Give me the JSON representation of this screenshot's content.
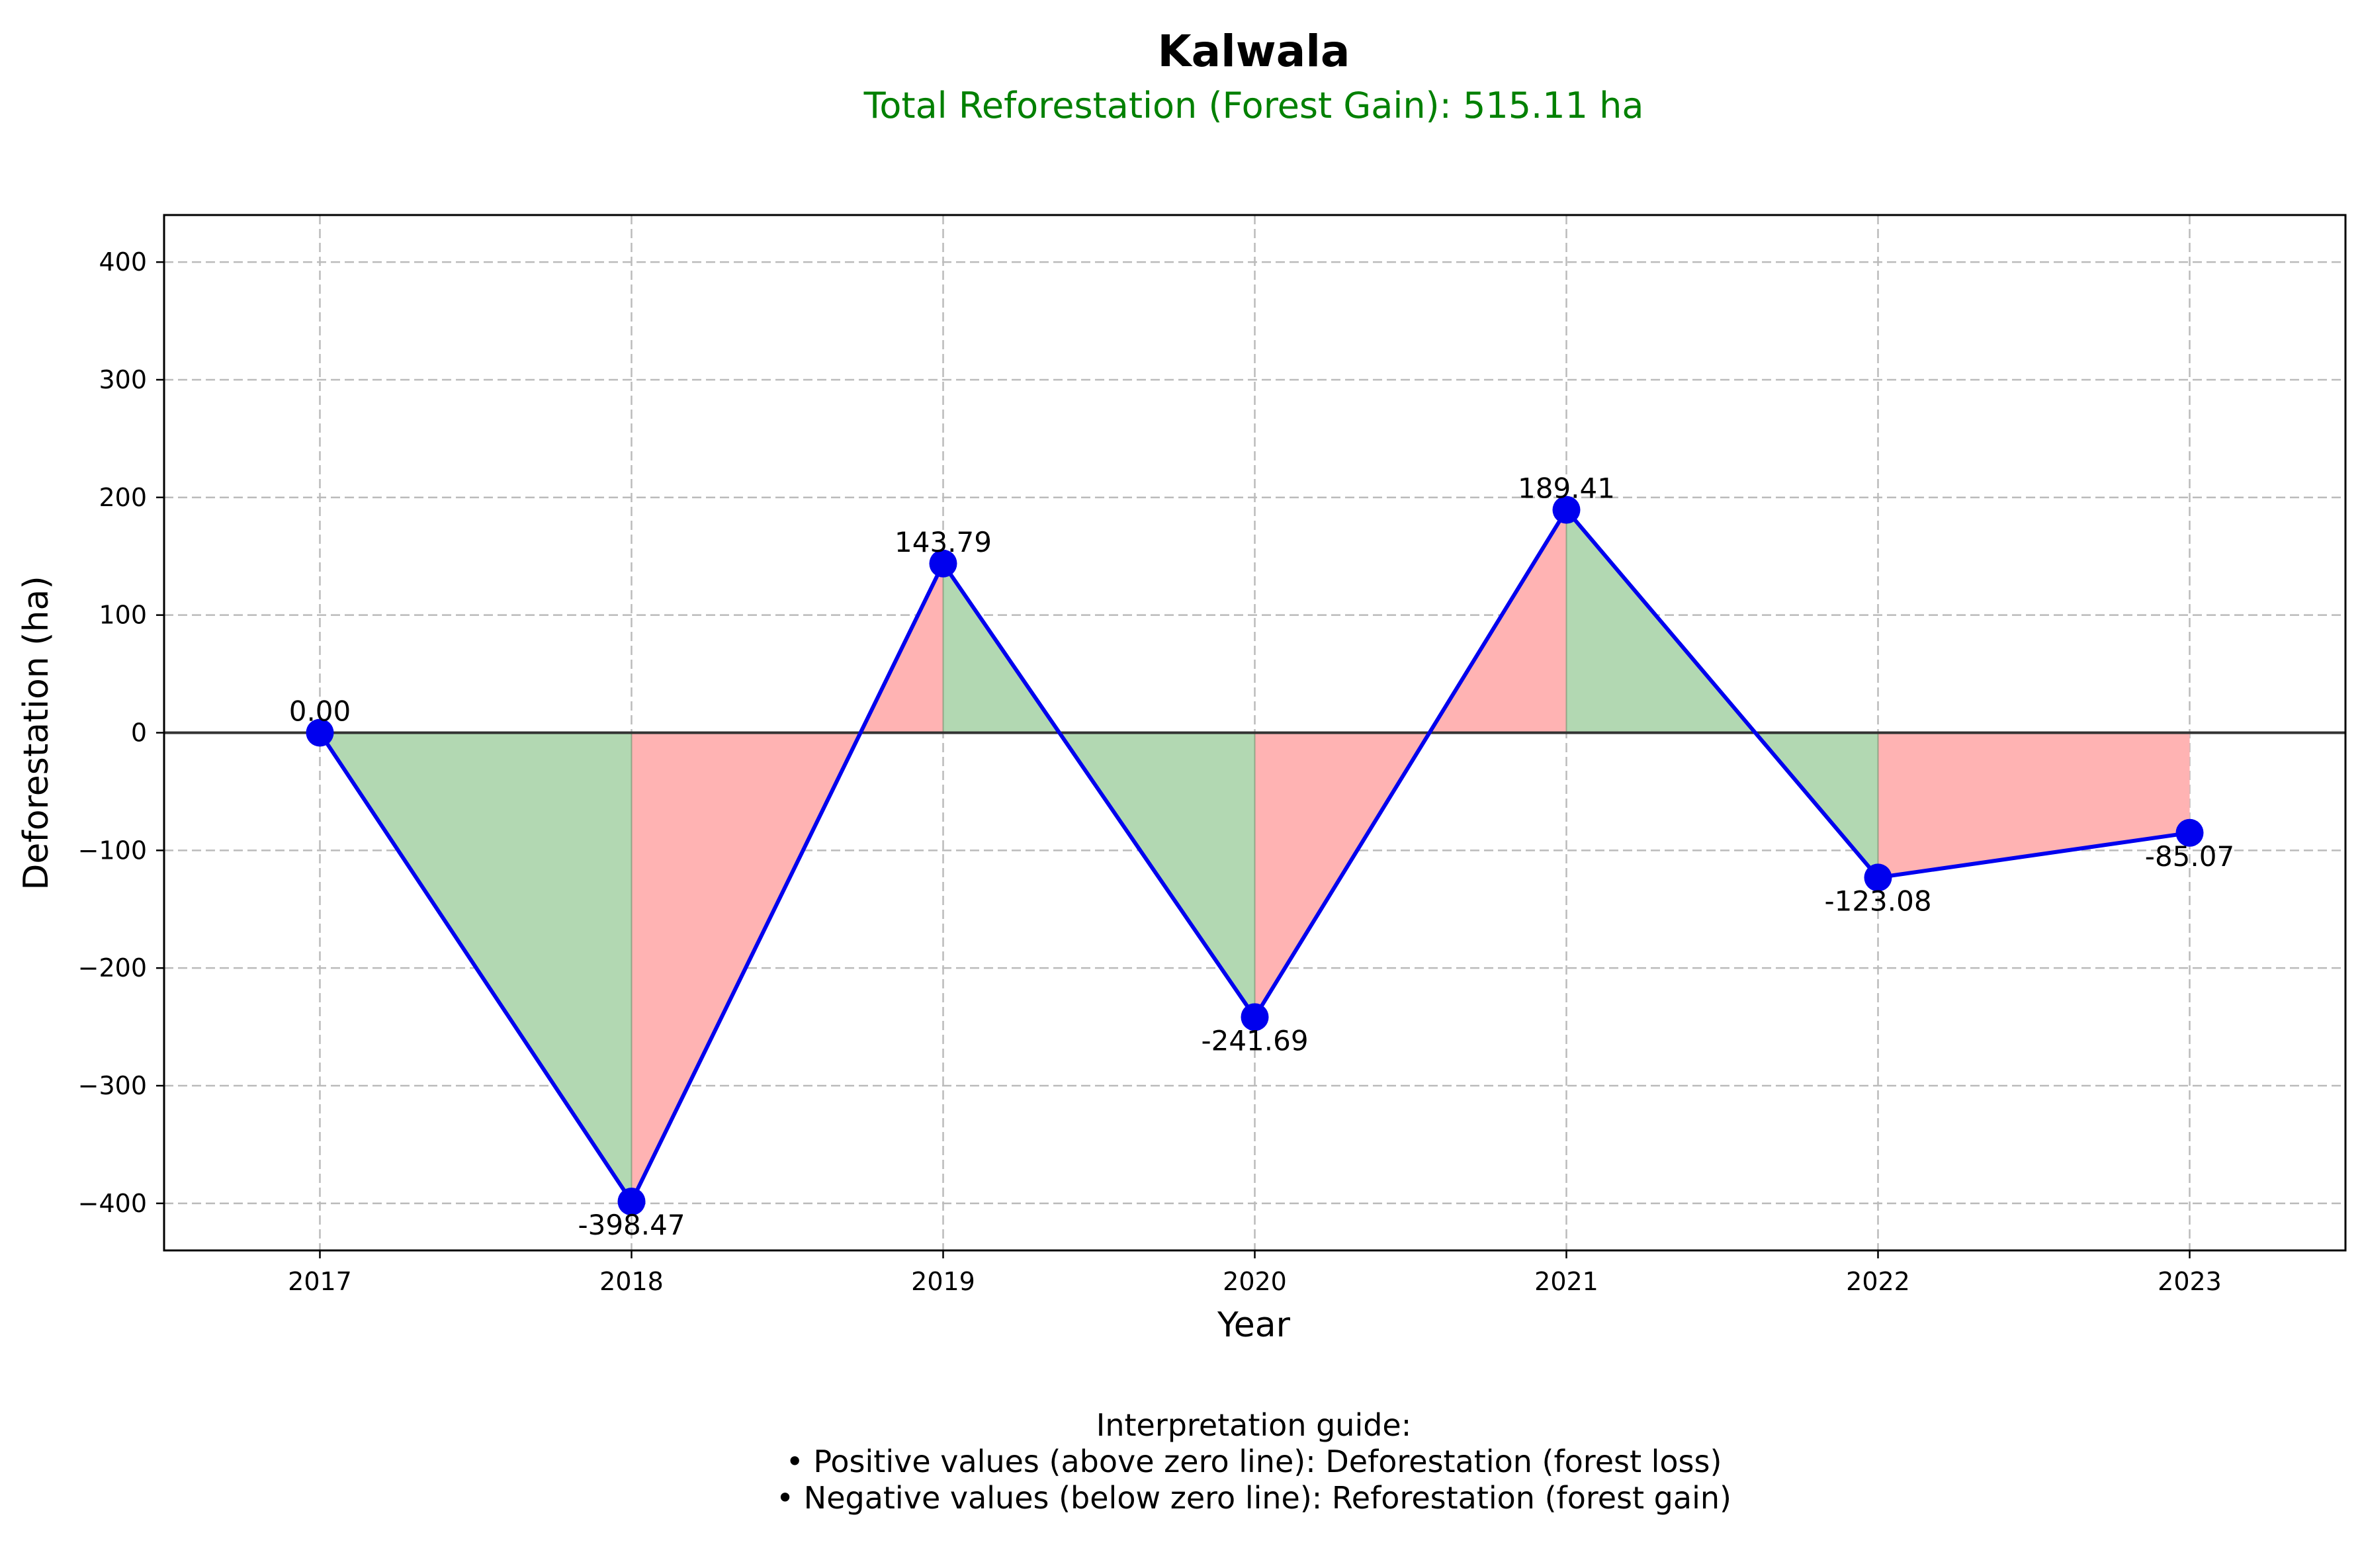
{
  "chart_data": {
    "type": "line",
    "title": "Kalwala",
    "subtitle": "Total Reforestation (Forest Gain): 515.11 ha",
    "xlabel": "Year",
    "ylabel": "Deforestation (ha)",
    "x": [
      2017,
      2018,
      2019,
      2020,
      2021,
      2022,
      2023
    ],
    "x_tick_labels": [
      "2017",
      "2018",
      "2019",
      "2020",
      "2021",
      "2022",
      "2023"
    ],
    "values": [
      0.0,
      -398.47,
      143.79,
      -241.69,
      189.41,
      -123.08,
      -85.07
    ],
    "data_labels": [
      "0.00",
      "-398.47",
      "143.79",
      "-241.69",
      "189.41",
      "-123.08",
      "-85.07"
    ],
    "xlim": [
      2016.5,
      2023.5
    ],
    "ylim": [
      -440,
      440
    ],
    "y_ticks": [
      400,
      300,
      200,
      100,
      0,
      -100,
      -200,
      -300,
      -400
    ],
    "y_tick_labels": [
      "400",
      "300",
      "200",
      "100",
      "0",
      "−100",
      "−200",
      "−300",
      "−400"
    ],
    "grid": true,
    "zero_line": true,
    "fill_colors": {
      "decrease": "#b2d8b2",
      "increase": "#ffb3b3"
    },
    "line_color": "#0000ee",
    "marker_color": "#0000ee",
    "subtitle_color": "#008000",
    "notes": [
      "Interpretation guide:",
      "• Positive values (above zero line): Deforestation (forest loss)",
      "• Negative values (below zero line): Reforestation (forest gain)"
    ]
  }
}
